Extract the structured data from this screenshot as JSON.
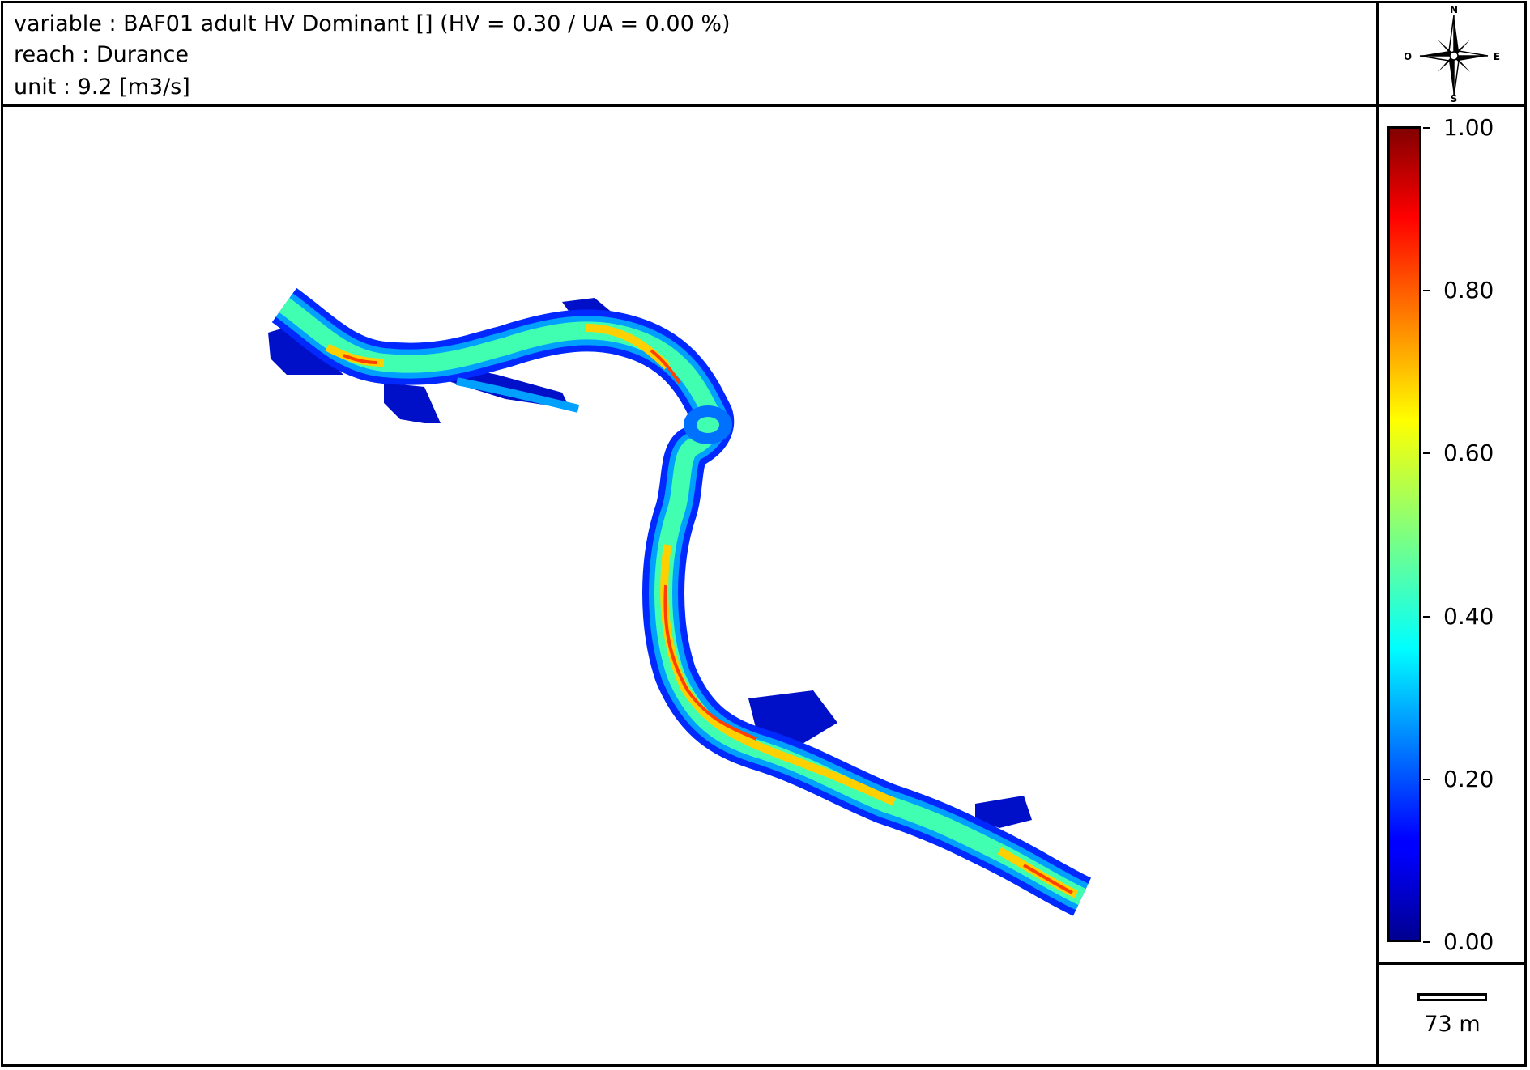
{
  "header": {
    "variable_line": "variable : BAF01 adult HV Dominant []  (HV = 0.30 / UA = 0.00 %)",
    "reach_line": "reach : Durance",
    "unit_line": "unit : 9.2 [m3/s]"
  },
  "compass": {
    "icon": "compass-rose-icon",
    "north": "N",
    "south": "S",
    "east": "E",
    "west": "O"
  },
  "colorbar": {
    "colormap": "jet",
    "range": [
      0.0,
      1.0
    ],
    "tick_labels": [
      "1.00",
      "0.80",
      "0.60",
      "0.40",
      "0.20",
      "0.00"
    ]
  },
  "scale_bar": {
    "label": "73 m"
  },
  "colors": {
    "low": "#00008f",
    "mid": "#7fff7f",
    "high": "#800000"
  }
}
